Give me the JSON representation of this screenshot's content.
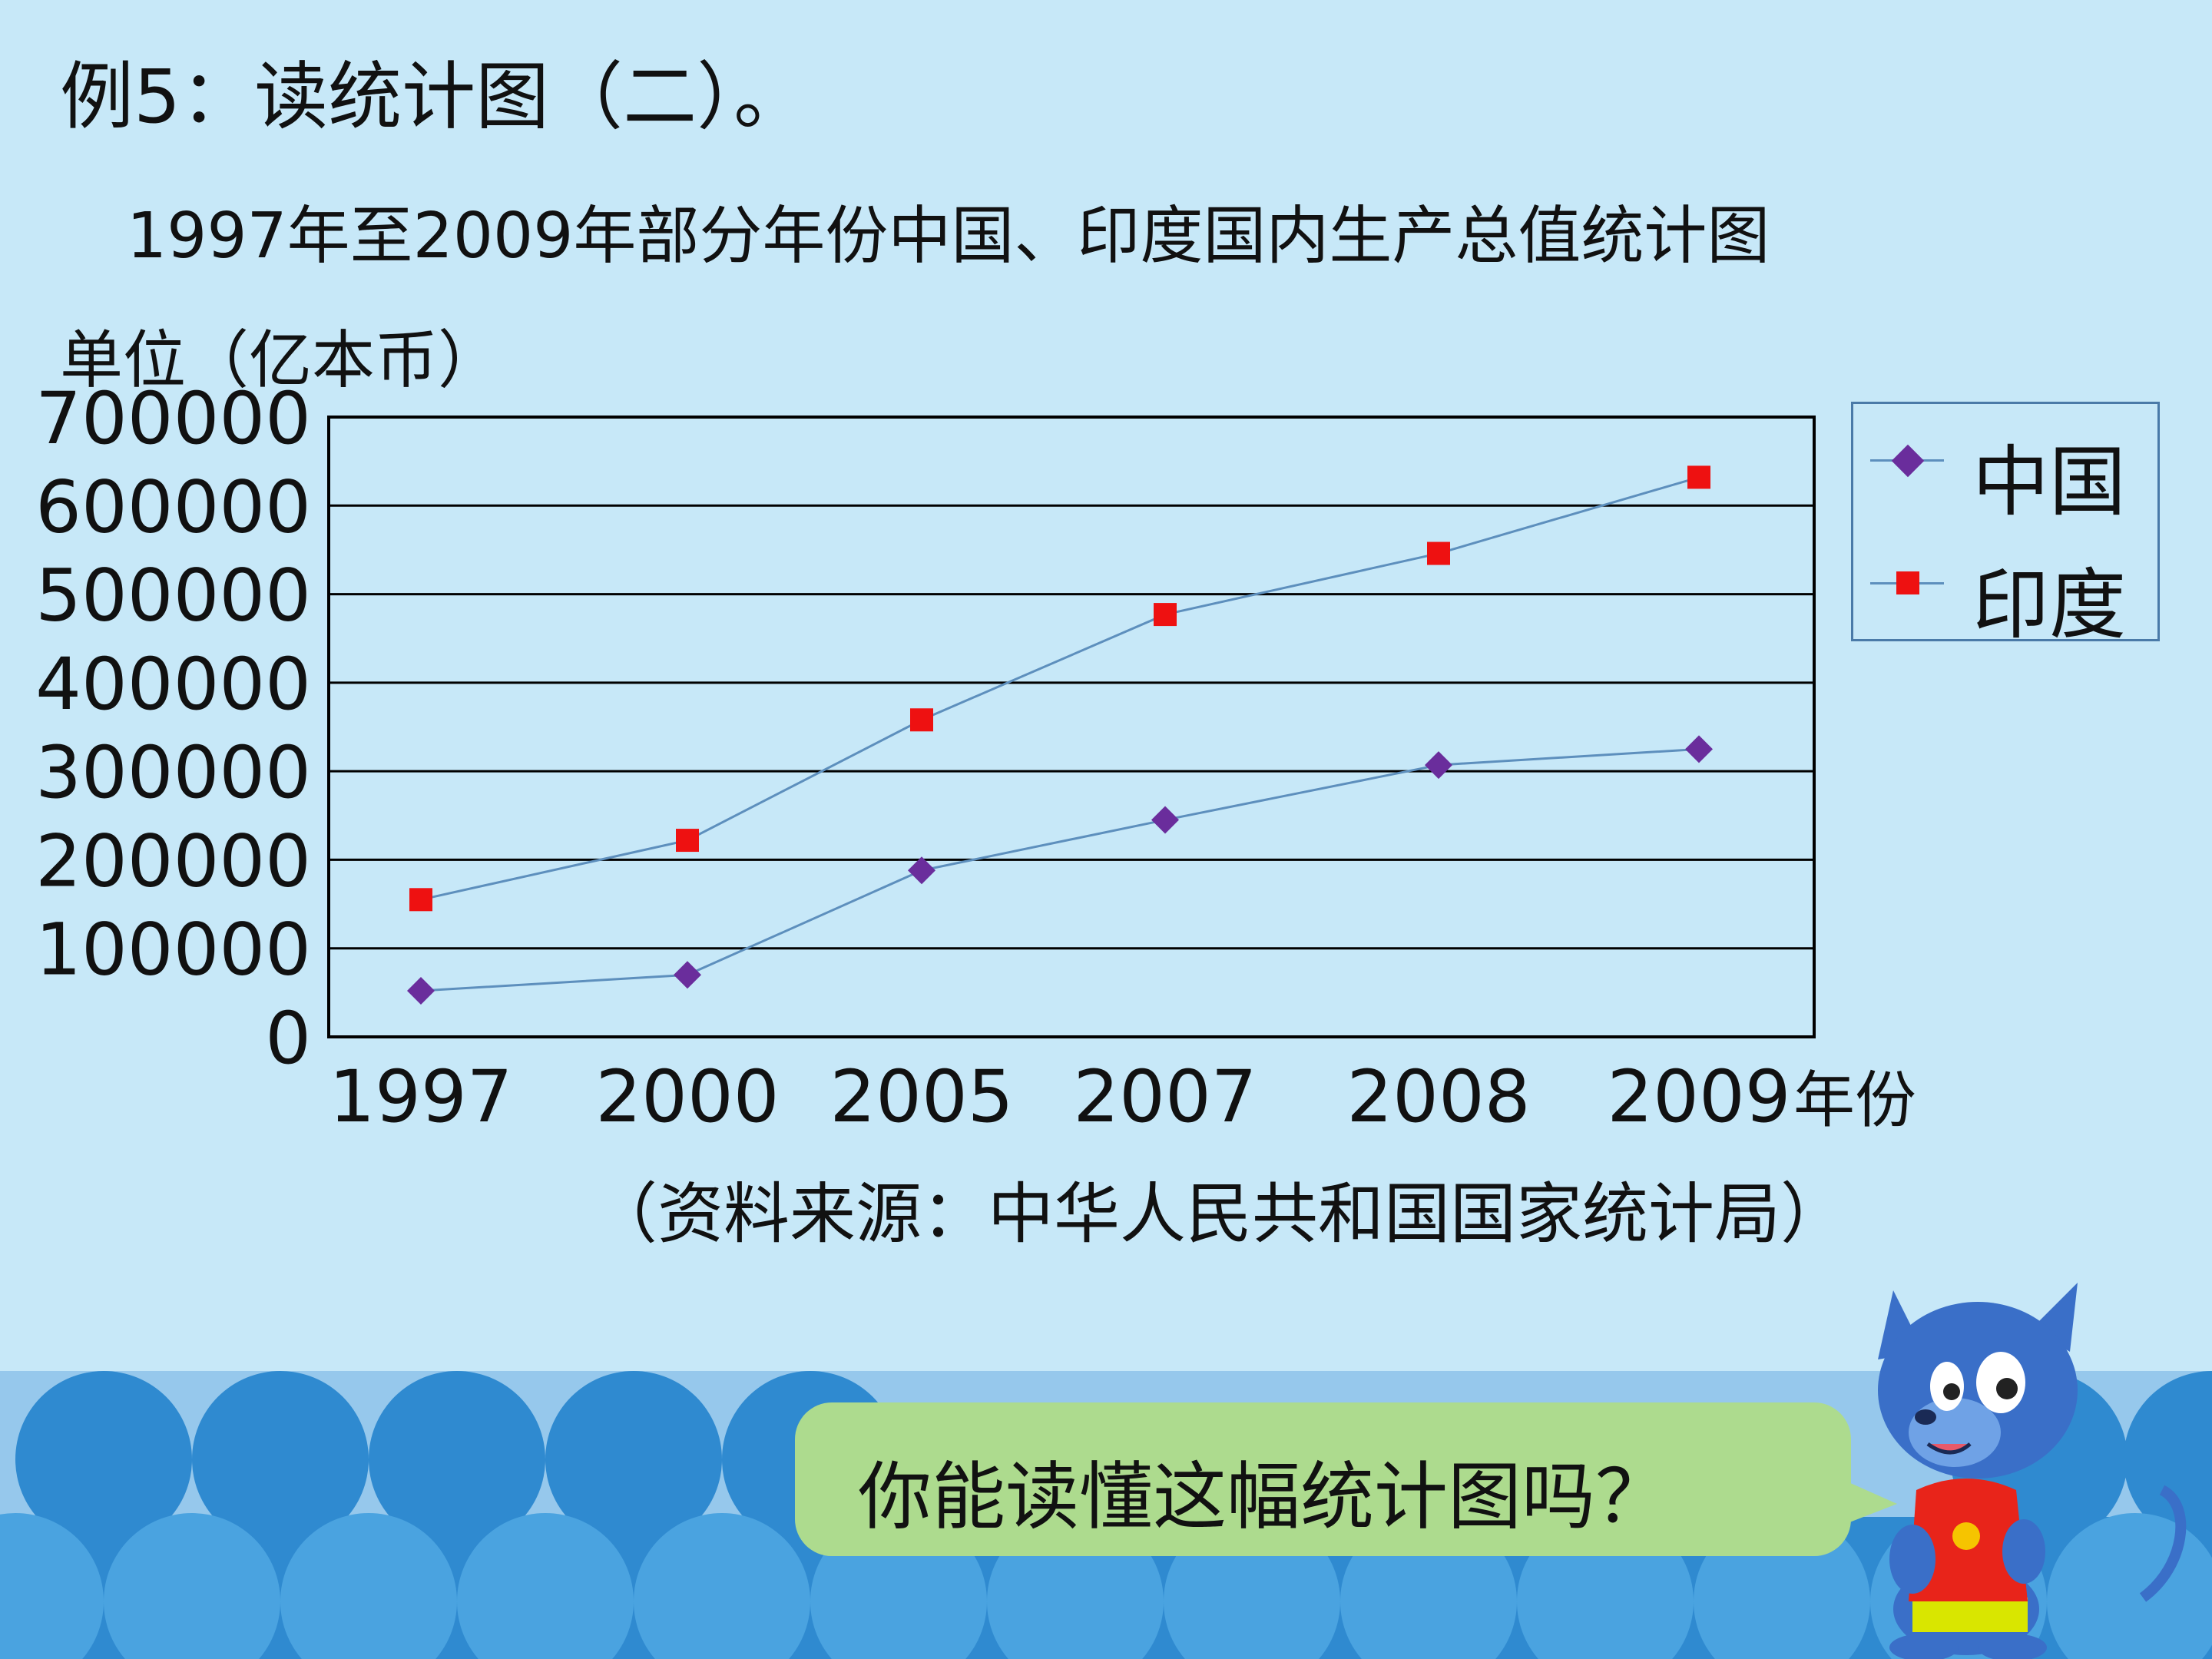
{
  "example_title": "例5：读统计图（二）。",
  "chart_data": {
    "type": "line",
    "title": "1997年至2009年部分年份中国、印度国内生产总值统计图",
    "ylabel": "单位（亿本币）",
    "xlabel": "年份",
    "categories": [
      "1997",
      "2000",
      "2005",
      "2007",
      "2008",
      "2009"
    ],
    "ylim": [
      0,
      700000
    ],
    "yticks": [
      "0",
      "100000",
      "200000",
      "300000",
      "400000",
      "500000",
      "600000",
      "700000"
    ],
    "grid": true,
    "legend_position": "right",
    "series": [
      {
        "name": "中国",
        "marker": "diamond",
        "color": "#6a2d9c",
        "values": [
          52000,
          70000,
          188000,
          245000,
          307000,
          325000
        ]
      },
      {
        "name": "印度",
        "marker": "square",
        "color": "#ee1111",
        "values": [
          155000,
          222000,
          358000,
          477000,
          546000,
          632000
        ]
      }
    ],
    "line_color": "#5d8fbd"
  },
  "source_note": "（资料来源：中华人民共和国国家统计局）",
  "speech_bubble": "你能读懂这幅统计图吗？",
  "colors": {
    "background": "#c7e8f8",
    "band": "#96c8ec",
    "waves": "#2f8ad0",
    "bubble": "#addb8e"
  }
}
